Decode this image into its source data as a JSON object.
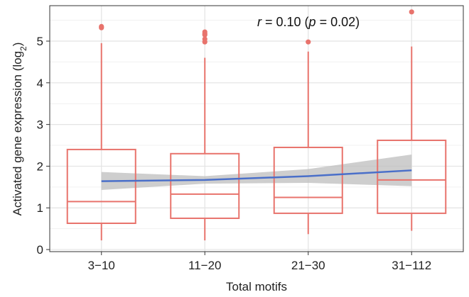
{
  "chart_data": {
    "type": "box",
    "xlabel": "Total motifs",
    "ylabel": "Activated gene expression (log",
    "ylabel_subscript": "2",
    "ylabel_close": ")",
    "annotation": {
      "r_symbol": "r",
      "r_text": " = 0.10 (",
      "p_symbol": "p",
      "p_text": " = 0.02)"
    },
    "ylim": [
      -0.05,
      5.85
    ],
    "yticks": [
      0,
      1,
      2,
      3,
      4,
      5
    ],
    "categories": [
      "3−10",
      "11−20",
      "21−30",
      "31−112"
    ],
    "boxes": [
      {
        "category": "3−10",
        "whisker_low": 0.22,
        "q1": 0.63,
        "median": 1.15,
        "q3": 2.4,
        "whisker_high": 4.95,
        "outliers": [
          5.32,
          5.35
        ]
      },
      {
        "category": "11−20",
        "whisker_low": 0.22,
        "q1": 0.75,
        "median": 1.33,
        "q3": 2.3,
        "whisker_high": 4.6,
        "outliers": [
          4.98,
          5.05,
          5.15,
          5.18,
          5.22
        ]
      },
      {
        "category": "21−30",
        "whisker_low": 0.37,
        "q1": 0.87,
        "median": 1.25,
        "q3": 2.45,
        "whisker_high": 4.75,
        "outliers": [
          4.98
        ]
      },
      {
        "category": "31−112",
        "whisker_low": 0.45,
        "q1": 0.87,
        "median": 1.67,
        "q3": 2.62,
        "whisker_high": 4.87,
        "outliers": [
          5.7
        ]
      }
    ],
    "trend": {
      "x": [
        1,
        2,
        3,
        4
      ],
      "fit": [
        1.64,
        1.67,
        1.76,
        1.9
      ],
      "ci_low": [
        1.43,
        1.58,
        1.6,
        1.52
      ],
      "ci_high": [
        1.86,
        1.76,
        1.93,
        2.28
      ]
    },
    "colors": {
      "box": "#E8736C",
      "trend": "#4A6FC9",
      "ci": "#BDBDBD",
      "grid": "#E3E3E3",
      "axis": "#333333"
    },
    "grid": true
  }
}
